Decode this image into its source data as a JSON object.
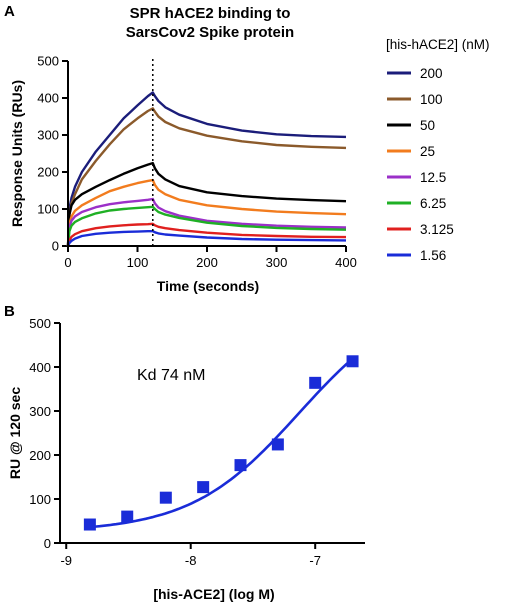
{
  "chart_data": [
    {
      "panel": "A",
      "type": "line",
      "title_lines": [
        "SPR hACE2 binding to",
        "SarsCov2 Spike protein"
      ],
      "xlabel": "Time (seconds)",
      "ylabel": "Response Units (RUs)",
      "xlim": [
        0,
        400
      ],
      "ylim": [
        0,
        500
      ],
      "xticks": [
        0,
        100,
        200,
        300,
        400
      ],
      "yticks": [
        0,
        100,
        200,
        300,
        400,
        500
      ],
      "legend_title": "[his-hACE2] (nM)",
      "legend_position": "right",
      "injection_end_marker": 122,
      "series": [
        {
          "name": "200",
          "color": "#1b1d7a",
          "x": [
            0,
            2,
            5,
            10,
            20,
            40,
            60,
            80,
            100,
            115,
            122,
            125,
            130,
            140,
            160,
            200,
            250,
            300,
            350,
            400
          ],
          "values": [
            0,
            100,
            130,
            160,
            200,
            255,
            300,
            345,
            380,
            405,
            415,
            405,
            392,
            375,
            355,
            330,
            312,
            302,
            297,
            295
          ]
        },
        {
          "name": "100",
          "color": "#8b5a2b",
          "x": [
            0,
            2,
            5,
            10,
            20,
            40,
            60,
            80,
            100,
            115,
            122,
            125,
            130,
            140,
            160,
            200,
            250,
            300,
            350,
            400
          ],
          "values": [
            0,
            85,
            115,
            140,
            180,
            230,
            275,
            315,
            345,
            365,
            372,
            363,
            350,
            335,
            318,
            298,
            283,
            273,
            268,
            265
          ]
        },
        {
          "name": "50",
          "color": "#000000",
          "x": [
            0,
            2,
            5,
            10,
            20,
            40,
            60,
            80,
            100,
            115,
            122,
            125,
            130,
            140,
            160,
            200,
            250,
            300,
            350,
            400
          ],
          "values": [
            0,
            85,
            110,
            125,
            140,
            160,
            178,
            195,
            210,
            220,
            224,
            210,
            195,
            180,
            162,
            145,
            135,
            128,
            124,
            121
          ]
        },
        {
          "name": "25",
          "color": "#f27c1e",
          "x": [
            0,
            2,
            5,
            10,
            20,
            40,
            60,
            80,
            100,
            115,
            122,
            125,
            130,
            140,
            160,
            200,
            250,
            300,
            350,
            400
          ],
          "values": [
            0,
            60,
            80,
            95,
            110,
            130,
            148,
            160,
            170,
            176,
            178,
            165,
            152,
            140,
            125,
            110,
            100,
            93,
            89,
            86
          ]
        },
        {
          "name": "12.5",
          "color": "#9b30c8",
          "x": [
            0,
            2,
            5,
            10,
            20,
            40,
            60,
            80,
            100,
            115,
            122,
            125,
            130,
            140,
            160,
            200,
            250,
            300,
            350,
            400
          ],
          "values": [
            0,
            50,
            68,
            80,
            92,
            105,
            113,
            118,
            122,
            125,
            127,
            115,
            104,
            94,
            82,
            68,
            60,
            55,
            52,
            50
          ]
        },
        {
          "name": "6.25",
          "color": "#1fb025",
          "x": [
            0,
            2,
            5,
            10,
            20,
            40,
            60,
            80,
            100,
            115,
            122,
            125,
            130,
            140,
            160,
            200,
            250,
            300,
            350,
            400
          ],
          "values": [
            0,
            40,
            55,
            65,
            75,
            88,
            96,
            100,
            103,
            105,
            106,
            100,
            92,
            85,
            76,
            63,
            54,
            49,
            46,
            44
          ]
        },
        {
          "name": "3.125",
          "color": "#e0201f",
          "x": [
            0,
            2,
            5,
            10,
            20,
            40,
            60,
            80,
            100,
            115,
            122,
            125,
            130,
            140,
            160,
            200,
            250,
            300,
            350,
            400
          ],
          "values": [
            0,
            15,
            25,
            32,
            40,
            48,
            53,
            56,
            58,
            59,
            60,
            56,
            52,
            48,
            43,
            36,
            30,
            27,
            25,
            24
          ]
        },
        {
          "name": "1.56",
          "color": "#1a2cd8",
          "x": [
            0,
            2,
            5,
            10,
            20,
            40,
            60,
            80,
            100,
            115,
            122,
            125,
            130,
            140,
            160,
            200,
            250,
            300,
            350,
            400
          ],
          "values": [
            0,
            8,
            14,
            20,
            27,
            33,
            36,
            38,
            39,
            40,
            40,
            37,
            34,
            31,
            28,
            23,
            19,
            17,
            16,
            15
          ]
        }
      ]
    },
    {
      "panel": "B",
      "type": "scatter",
      "xlabel": "[his-ACE2] (log M)",
      "ylabel": "RU @ 120 sec",
      "xlim": [
        -9.05,
        -6.6
      ],
      "ylim": [
        0,
        500
      ],
      "xticks": [
        -9,
        -8,
        -7
      ],
      "yticks": [
        0,
        100,
        200,
        300,
        400,
        500
      ],
      "annotation": "Kd 74 nM",
      "color": "#1a2cd8",
      "points": [
        {
          "x": -8.81,
          "y": 42
        },
        {
          "x": -8.51,
          "y": 60
        },
        {
          "x": -8.2,
          "y": 103
        },
        {
          "x": -7.9,
          "y": 127
        },
        {
          "x": -7.6,
          "y": 177
        },
        {
          "x": -7.3,
          "y": 224
        },
        {
          "x": -7.0,
          "y": 364
        },
        {
          "x": -6.7,
          "y": 413
        }
      ],
      "fit": {
        "model": "one-site binding",
        "kd_molar": 7.4e-08,
        "bmax": 540,
        "baseline": 25,
        "x_range": [
          -8.81,
          -6.7
        ]
      }
    }
  ]
}
